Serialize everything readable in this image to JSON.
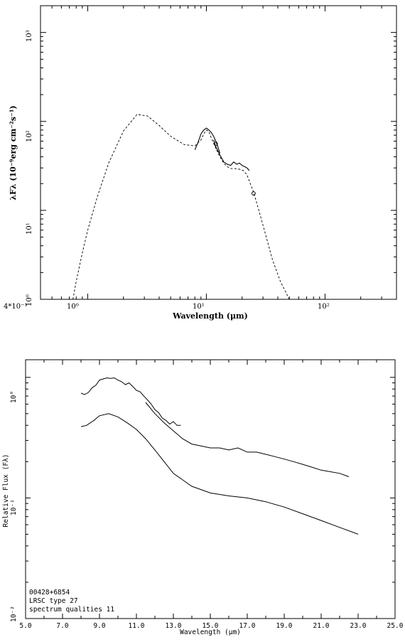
{
  "chart_data": [
    {
      "type": "line",
      "xscale": "log",
      "yscale": "log",
      "xlabel": "Wavelength (μm)",
      "ylabel": "λFλ (10⁻⁹erg cm⁻²s⁻¹)",
      "xlim": [
        0.4,
        400
      ],
      "ylim": [
        1,
        2000
      ],
      "xtick_labels": [
        "4*10⁻¹",
        "10⁰",
        "10¹",
        "10²"
      ],
      "ytick_labels": [
        "10⁰",
        "10¹",
        "10²",
        "10³"
      ],
      "series": [
        {
          "style": "dashed",
          "x": [
            0.75,
            0.8,
            0.9,
            1.0,
            1.2,
            1.5,
            2.0,
            2.6,
            3.2,
            4.0,
            5.0,
            6.5,
            8.0,
            9.0,
            9.6,
            10.0,
            10.5,
            11.0,
            12.0,
            13.0,
            14.0,
            15.0,
            16.0,
            17.5,
            19.0,
            20.5,
            22.0,
            25.0,
            28.0,
            32.0,
            36.0,
            42.0,
            50.0
          ],
          "y": [
            1.0,
            1.6,
            3.3,
            6.0,
            14.0,
            34.0,
            78.0,
            120.0,
            115.0,
            90.0,
            68.0,
            55.0,
            53.0,
            62.0,
            74.0,
            80.0,
            77.0,
            65.0,
            50.0,
            40.0,
            34.0,
            31.0,
            29.5,
            29.5,
            29.0,
            28.0,
            25.0,
            16.0,
            9.5,
            5.0,
            2.8,
            1.6,
            1.0
          ]
        },
        {
          "style": "solid",
          "x": [
            8.0,
            8.5,
            9.0,
            9.5,
            10.0,
            10.5,
            11.0,
            11.5,
            12.0,
            12.5,
            13.0
          ],
          "y": [
            48.0,
            58.0,
            72.0,
            80.0,
            84.0,
            80.0,
            75.0,
            68.0,
            60.0,
            52.0,
            44.0
          ]
        },
        {
          "style": "solid",
          "x": [
            11.5,
            12.0,
            13.0,
            14.0,
            15.0,
            16.0,
            17.0,
            18.0,
            19.0,
            20.0,
            21.0,
            22.0,
            23.0
          ],
          "y": [
            62.0,
            52.0,
            42.0,
            35.0,
            33.0,
            32.0,
            35.0,
            33.0,
            34.0,
            32.0,
            31.0,
            30.0,
            28.0
          ]
        },
        {
          "style": "markers",
          "x": [
            12.0,
            25.0
          ],
          "y": [
            56.0,
            15.5
          ]
        }
      ]
    },
    {
      "type": "line",
      "yscale": "log",
      "xlabel": "Wavelength (μm)",
      "ylabel": "Relative Flux (Fλ)",
      "xlim": [
        5.0,
        25.0
      ],
      "ylim": [
        0.01,
        1.4
      ],
      "xtick_labels": [
        "5.0",
        "7.0",
        "9.0",
        "11.0",
        "13.0",
        "15.0",
        "17.0",
        "19.0",
        "21.0",
        "23.0",
        "25.0"
      ],
      "ytick_labels": [
        "10°",
        "10⁻¹",
        "10⁻²"
      ],
      "annotations": [
        "00428+6854",
        "LRSC type 27",
        "spectrum qualities 11"
      ],
      "series": [
        {
          "x": [
            8.0,
            8.2,
            8.4,
            8.6,
            8.8,
            9.0,
            9.2,
            9.4,
            9.6,
            9.8,
            10.0,
            10.2,
            10.4,
            10.6,
            10.8,
            11.0,
            11.2,
            11.4,
            11.6,
            11.8,
            12.0,
            12.2,
            12.4,
            12.6,
            12.8,
            13.0,
            13.2,
            13.4
          ],
          "y": [
            0.74,
            0.72,
            0.75,
            0.82,
            0.86,
            0.95,
            0.97,
            0.99,
            0.98,
            0.99,
            0.95,
            0.92,
            0.87,
            0.9,
            0.84,
            0.78,
            0.76,
            0.7,
            0.65,
            0.6,
            0.54,
            0.51,
            0.46,
            0.44,
            0.41,
            0.43,
            0.4,
            0.4
          ]
        },
        {
          "x": [
            11.5,
            12.0,
            12.5,
            13.0,
            13.5,
            14.0,
            14.5,
            15.0,
            15.5,
            16.0,
            16.5,
            17.0,
            17.5,
            18.0,
            18.5,
            19.0,
            19.5,
            20.0,
            20.5,
            21.0,
            21.5,
            22.0,
            22.5
          ],
          "y": [
            0.62,
            0.5,
            0.42,
            0.36,
            0.31,
            0.28,
            0.27,
            0.26,
            0.26,
            0.25,
            0.26,
            0.24,
            0.24,
            0.23,
            0.22,
            0.21,
            0.2,
            0.19,
            0.18,
            0.17,
            0.165,
            0.16,
            0.15
          ]
        },
        {
          "x": [
            8.0,
            8.3,
            8.7,
            9.0,
            9.5,
            10.0,
            10.5,
            11.0,
            11.5,
            12.0,
            12.5,
            13.0,
            14.0,
            15.0,
            16.0,
            17.0,
            18.0,
            19.0,
            20.0,
            21.0,
            22.0,
            23.0
          ],
          "y": [
            0.39,
            0.4,
            0.44,
            0.48,
            0.5,
            0.47,
            0.42,
            0.37,
            0.31,
            0.25,
            0.2,
            0.16,
            0.125,
            0.11,
            0.104,
            0.1,
            0.093,
            0.084,
            0.074,
            0.065,
            0.057,
            0.05
          ]
        }
      ]
    }
  ]
}
